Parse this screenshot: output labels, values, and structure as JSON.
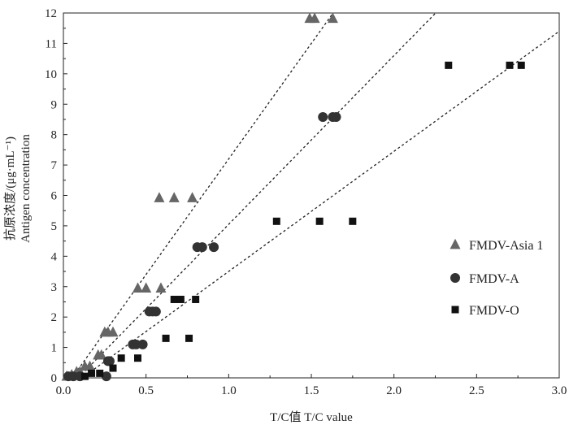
{
  "chart_data": {
    "type": "scatter",
    "xlabel": "T/C值  T/C value",
    "ylabel_cn": "抗原浓度/(μg·mL⁻¹)",
    "ylabel_en": "Antigen concentration",
    "xlim": [
      0,
      3.0
    ],
    "ylim": [
      0,
      12
    ],
    "x_ticks": [
      "0.0",
      "0.5",
      "1.0",
      "1.5",
      "2.0",
      "2.5",
      "3.0"
    ],
    "y_ticks": [
      "0",
      "1",
      "2",
      "3",
      "4",
      "5",
      "6",
      "7",
      "8",
      "9",
      "10",
      "11",
      "12"
    ],
    "legend_position": "right",
    "series": [
      {
        "name": "FMDV-Asia 1",
        "marker": "triangle",
        "color": "#666666",
        "points": [
          [
            0.02,
            0.05
          ],
          [
            0.05,
            0.1
          ],
          [
            0.08,
            0.2
          ],
          [
            0.1,
            0.2
          ],
          [
            0.13,
            0.38
          ],
          [
            0.16,
            0.38
          ],
          [
            0.21,
            0.75
          ],
          [
            0.23,
            0.75
          ],
          [
            0.25,
            1.5
          ],
          [
            0.27,
            1.5
          ],
          [
            0.3,
            1.5
          ],
          [
            0.45,
            2.95
          ],
          [
            0.5,
            2.95
          ],
          [
            0.59,
            2.95
          ],
          [
            0.58,
            5.92
          ],
          [
            0.67,
            5.92
          ],
          [
            0.78,
            5.92
          ],
          [
            1.49,
            11.82
          ],
          [
            1.52,
            11.82
          ],
          [
            1.63,
            11.82
          ]
        ],
        "trendline": {
          "slope": 7.6,
          "intercept": -0.4
        }
      },
      {
        "name": "FMDV-A",
        "marker": "circle",
        "color": "#333333",
        "points": [
          [
            0.03,
            0.05
          ],
          [
            0.06,
            0.05
          ],
          [
            0.1,
            0.05
          ],
          [
            0.26,
            0.05
          ],
          [
            0.27,
            0.55
          ],
          [
            0.28,
            0.55
          ],
          [
            0.42,
            1.1
          ],
          [
            0.44,
            1.1
          ],
          [
            0.48,
            1.1
          ],
          [
            0.52,
            2.18
          ],
          [
            0.54,
            2.18
          ],
          [
            0.56,
            2.18
          ],
          [
            0.81,
            4.3
          ],
          [
            0.84,
            4.3
          ],
          [
            0.91,
            4.3
          ],
          [
            1.57,
            8.58
          ],
          [
            1.63,
            8.58
          ],
          [
            1.65,
            8.58
          ]
        ],
        "trendline": {
          "slope": 5.55,
          "intercept": -0.5
        }
      },
      {
        "name": "FMDV-O",
        "marker": "square",
        "color": "#111111",
        "points": [
          [
            0.13,
            0.05
          ],
          [
            0.17,
            0.15
          ],
          [
            0.22,
            0.15
          ],
          [
            0.3,
            0.32
          ],
          [
            0.35,
            0.65
          ],
          [
            0.45,
            0.65
          ],
          [
            0.62,
            1.3
          ],
          [
            0.76,
            1.3
          ],
          [
            0.67,
            2.58
          ],
          [
            0.71,
            2.58
          ],
          [
            0.8,
            2.58
          ],
          [
            1.29,
            5.15
          ],
          [
            1.55,
            5.15
          ],
          [
            1.75,
            5.15
          ],
          [
            2.33,
            10.28
          ],
          [
            2.7,
            10.28
          ],
          [
            2.77,
            10.28
          ]
        ],
        "trendline": {
          "slope": 3.95,
          "intercept": -0.45
        }
      }
    ]
  }
}
